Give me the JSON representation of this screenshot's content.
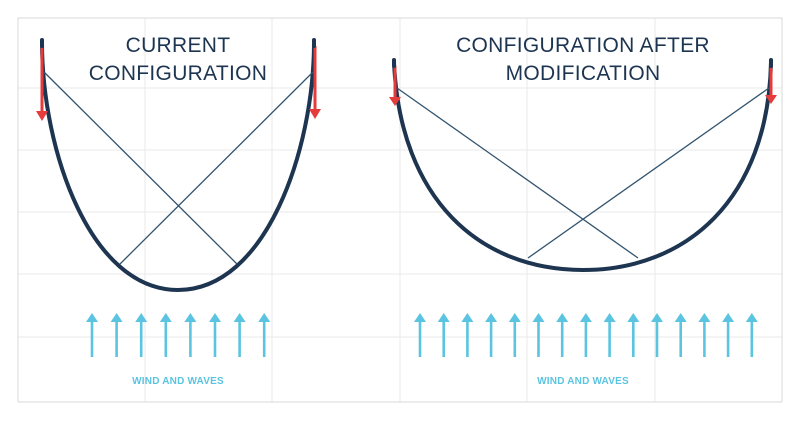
{
  "colors": {
    "background": "#ffffff",
    "grid": "#e9e9e9",
    "frame": "#d9d9d9",
    "curve": "#1d3550",
    "cable": "#33546f",
    "downforce": "#e53b3b",
    "wind": "#5bc4e0",
    "title": "#1d3550"
  },
  "panels": [
    {
      "title_line1": "CURRENT",
      "title_line2": "CONFIGURATION",
      "wind_label": "WIND AND WAVES"
    },
    {
      "title_line1": "CONFIGURATION AFTER",
      "title_line2": "MODIFICATION",
      "wind_label": "WIND AND WAVES"
    }
  ],
  "icons": {
    "downforce": "red-down-arrow-icon",
    "wind": "cyan-up-arrow-icon"
  }
}
